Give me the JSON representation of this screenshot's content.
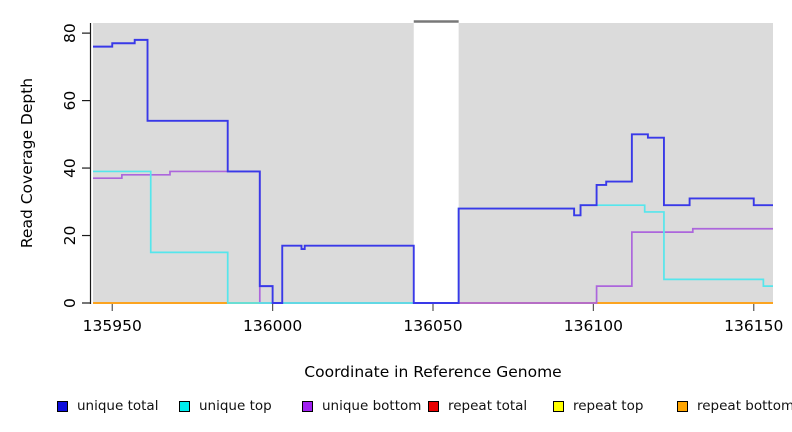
{
  "chart_data": {
    "type": "line",
    "title": "",
    "xlabel": "Coordinate in Reference Genome",
    "ylabel": "Read Coverage Depth",
    "xlim": [
      135944,
      136156
    ],
    "ylim": [
      0,
      83
    ],
    "x_tick_values": [
      135950,
      136000,
      136050,
      136100,
      136150
    ],
    "x_tick_labels": [
      "135950",
      "136000",
      "136050",
      "136100",
      "136150"
    ],
    "y_tick_values": [
      0,
      20,
      40,
      60,
      80
    ],
    "y_tick_labels": [
      "0",
      "20",
      "40",
      "60",
      "80"
    ],
    "grid": false,
    "plot_background": "#DBDBDB",
    "axis_color": "#1a1a1a",
    "repeat_region": {
      "start": 136044,
      "end": 136058,
      "cap_color": "#787878"
    },
    "legend_position": "bottom",
    "legend": [
      {
        "label": "unique total",
        "swatch": "#0D0DDC"
      },
      {
        "label": "unique top",
        "swatch": "#00EEEE"
      },
      {
        "label": "unique bottom",
        "swatch": "#A020F0"
      },
      {
        "label": "repeat total",
        "swatch": "#E80000"
      },
      {
        "label": "repeat top",
        "swatch": "#FFFF00"
      },
      {
        "label": "repeat bottom",
        "swatch": "#FFA500"
      }
    ],
    "series": [
      {
        "name": "repeat total",
        "color": "#C43B64",
        "steps": [
          [
            135944,
            0
          ]
        ]
      },
      {
        "name": "repeat top",
        "color": "#F2F22A",
        "steps": [
          [
            135944,
            0
          ]
        ]
      },
      {
        "name": "repeat bottom",
        "color": "#FF9E1B",
        "steps": [
          [
            135944,
            0
          ]
        ]
      },
      {
        "name": "unique bottom",
        "color": "#AC66DC",
        "steps": [
          [
            135944,
            37
          ],
          [
            135953,
            38
          ],
          [
            135968,
            39
          ],
          [
            135996,
            0
          ],
          [
            136101,
            5
          ],
          [
            136112,
            21
          ],
          [
            136131,
            22
          ]
        ]
      },
      {
        "name": "unique top",
        "color": "#55E6EC",
        "steps": [
          [
            135944,
            39
          ],
          [
            135962,
            15
          ],
          [
            135986,
            0
          ],
          [
            136058,
            28
          ],
          [
            136094,
            26
          ],
          [
            136096,
            29
          ],
          [
            136116,
            27
          ],
          [
            136122,
            7
          ],
          [
            136153,
            5
          ]
        ]
      },
      {
        "name": "unique total",
        "color": "#3939E8",
        "steps": [
          [
            135944,
            76
          ],
          [
            135950,
            77
          ],
          [
            135957,
            78
          ],
          [
            135961,
            54
          ],
          [
            135986,
            39
          ],
          [
            135996,
            5
          ],
          [
            136000,
            0
          ],
          [
            136003,
            17
          ],
          [
            136009,
            16
          ],
          [
            136010,
            17
          ],
          [
            136044,
            0
          ],
          [
            136058,
            28
          ],
          [
            136094,
            26
          ],
          [
            136096,
            29
          ],
          [
            136101,
            35
          ],
          [
            136104,
            36
          ],
          [
            136112,
            50
          ],
          [
            136117,
            49
          ],
          [
            136122,
            29
          ],
          [
            136130,
            31
          ],
          [
            136150,
            29
          ]
        ]
      }
    ]
  }
}
